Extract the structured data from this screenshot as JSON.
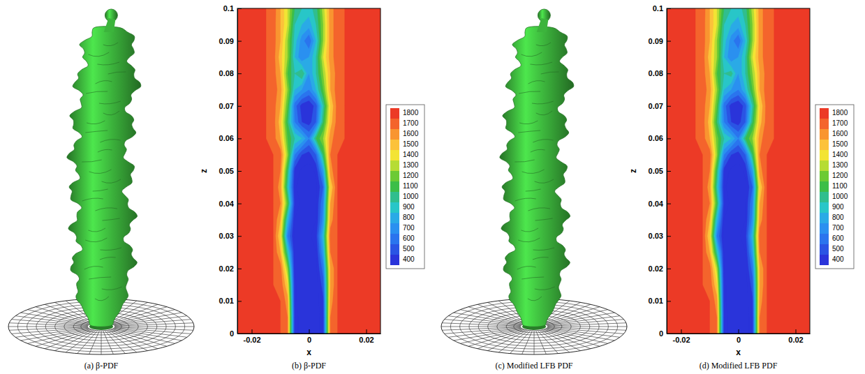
{
  "chart_data": [
    {
      "type": "isosurface",
      "title": "(a) β-PDF",
      "color": "#3cb43c"
    },
    {
      "type": "contour",
      "title": "(b) β-PDF",
      "xlabel": "x",
      "ylabel": "z",
      "xlim": [
        -0.025,
        0.025
      ],
      "xticks": [
        -0.02,
        0,
        0.02
      ],
      "ylim": [
        0,
        0.1
      ],
      "yticks": [
        0,
        0.01,
        0.02,
        0.03,
        0.04,
        0.05,
        0.06,
        0.07,
        0.08,
        0.09,
        0.1
      ],
      "x": [
        -0.025,
        -0.0225,
        -0.02,
        -0.0175,
        -0.015,
        -0.0125,
        -0.01,
        -0.0075,
        -0.005,
        -0.0025,
        0,
        0.0025,
        0.005,
        0.0075,
        0.01,
        0.0125,
        0.015,
        0.0175,
        0.02,
        0.0225,
        0.025
      ],
      "y": [
        0,
        0.005,
        0.01,
        0.015,
        0.02,
        0.025,
        0.03,
        0.035,
        0.04,
        0.045,
        0.05,
        0.055,
        0.06,
        0.065,
        0.07,
        0.075,
        0.08,
        0.085,
        0.09,
        0.095,
        0.1
      ],
      "cells": [
        [
          1800,
          1800,
          1800,
          1800,
          1800,
          1800,
          1800,
          1700,
          450,
          350,
          350,
          350,
          450,
          1700,
          1800,
          1800,
          1800,
          1800,
          1800,
          1800,
          1800
        ],
        [
          1800,
          1800,
          1800,
          1800,
          1800,
          1800,
          1800,
          1700,
          450,
          350,
          350,
          350,
          450,
          1700,
          1800,
          1800,
          1800,
          1800,
          1800,
          1800,
          1800
        ],
        [
          1800,
          1800,
          1800,
          1800,
          1800,
          1800,
          1800,
          1650,
          420,
          350,
          350,
          350,
          480,
          1650,
          1800,
          1800,
          1800,
          1800,
          1800,
          1800,
          1800
        ],
        [
          1800,
          1800,
          1800,
          1800,
          1800,
          1800,
          1780,
          1500,
          420,
          350,
          350,
          350,
          550,
          1600,
          1800,
          1800,
          1800,
          1800,
          1800,
          1800,
          1800
        ],
        [
          1800,
          1800,
          1800,
          1800,
          1800,
          1800,
          1750,
          1300,
          400,
          350,
          350,
          380,
          650,
          1600,
          1800,
          1800,
          1800,
          1800,
          1800,
          1800,
          1800
        ],
        [
          1800,
          1800,
          1800,
          1800,
          1800,
          1800,
          1600,
          1000,
          400,
          350,
          350,
          400,
          800,
          1700,
          1800,
          1800,
          1800,
          1800,
          1800,
          1800,
          1800
        ],
        [
          1800,
          1800,
          1800,
          1800,
          1800,
          1800,
          1500,
          700,
          380,
          350,
          380,
          450,
          900,
          1750,
          1800,
          1800,
          1800,
          1800,
          1800,
          1800,
          1800
        ],
        [
          1800,
          1800,
          1800,
          1800,
          1800,
          1800,
          1600,
          900,
          400,
          350,
          350,
          400,
          750,
          1650,
          1800,
          1800,
          1800,
          1800,
          1800,
          1800,
          1800
        ],
        [
          1800,
          1800,
          1800,
          1800,
          1800,
          1800,
          1700,
          1200,
          450,
          380,
          350,
          400,
          700,
          1600,
          1800,
          1800,
          1800,
          1800,
          1800,
          1800,
          1800
        ],
        [
          1800,
          1800,
          1800,
          1800,
          1800,
          1800,
          1650,
          1000,
          420,
          350,
          350,
          380,
          600,
          1500,
          1800,
          1800,
          1800,
          1800,
          1800,
          1800,
          1800
        ],
        [
          1800,
          1800,
          1800,
          1800,
          1800,
          1800,
          1700,
          1100,
          450,
          380,
          350,
          420,
          800,
          1650,
          1800,
          1800,
          1800,
          1800,
          1800,
          1800,
          1800
        ],
        [
          1800,
          1800,
          1800,
          1800,
          1800,
          1800,
          1750,
          1300,
          700,
          500,
          450,
          600,
          1100,
          1700,
          1800,
          1800,
          1800,
          1800,
          1800,
          1800,
          1800
        ],
        [
          1800,
          1800,
          1800,
          1800,
          1800,
          1750,
          1600,
          1200,
          1000,
          900,
          700,
          1100,
          1300,
          1650,
          1780,
          1800,
          1800,
          1800,
          1800,
          1800,
          1800
        ],
        [
          1800,
          1800,
          1800,
          1800,
          1800,
          1750,
          1550,
          1100,
          700,
          500,
          450,
          600,
          1100,
          1550,
          1750,
          1800,
          1800,
          1800,
          1800,
          1800,
          1800
        ],
        [
          1800,
          1800,
          1800,
          1800,
          1800,
          1750,
          1600,
          1200,
          650,
          450,
          400,
          550,
          1000,
          1500,
          1750,
          1800,
          1800,
          1800,
          1800,
          1800,
          1800
        ],
        [
          1800,
          1800,
          1800,
          1800,
          1800,
          1760,
          1650,
          1300,
          900,
          800,
          700,
          900,
          1200,
          1600,
          1760,
          1800,
          1800,
          1800,
          1800,
          1800,
          1800
        ],
        [
          1800,
          1800,
          1800,
          1800,
          1800,
          1750,
          1600,
          1200,
          1000,
          1100,
          800,
          1000,
          1300,
          1600,
          1750,
          1800,
          1800,
          1800,
          1800,
          1800,
          1800
        ],
        [
          1800,
          1800,
          1800,
          1800,
          1800,
          1750,
          1550,
          1300,
          900,
          700,
          800,
          1000,
          1400,
          1650,
          1760,
          1800,
          1800,
          1800,
          1800,
          1800,
          1800
        ],
        [
          1800,
          1800,
          1800,
          1800,
          1800,
          1750,
          1600,
          1300,
          950,
          750,
          600,
          900,
          1300,
          1650,
          1760,
          1800,
          1800,
          1800,
          1800,
          1800,
          1800
        ],
        [
          1800,
          1800,
          1800,
          1800,
          1800,
          1750,
          1600,
          1400,
          1000,
          900,
          850,
          1000,
          1300,
          1650,
          1760,
          1800,
          1800,
          1800,
          1800,
          1800,
          1800
        ],
        [
          1800,
          1800,
          1800,
          1800,
          1800,
          1760,
          1600,
          1400,
          1100,
          1000,
          950,
          1050,
          1350,
          1650,
          1760,
          1800,
          1800,
          1800,
          1800,
          1800,
          1800
        ]
      ],
      "colorbar": {
        "levels": [
          1800,
          1700,
          1600,
          1500,
          1400,
          1300,
          1200,
          1100,
          1000,
          900,
          800,
          700,
          600,
          500,
          400
        ],
        "colors": [
          "#ec3a26",
          "#f4642c",
          "#f99530",
          "#fcc23a",
          "#f3e434",
          "#b6dc34",
          "#6cca34",
          "#3cbe48",
          "#30be8e",
          "#28c6c8",
          "#2aaae6",
          "#2a90f0",
          "#2a74ee",
          "#2a54e4",
          "#2a34da"
        ]
      }
    },
    {
      "type": "isosurface",
      "title": "(c) Modified LFB PDF",
      "color": "#3cb43c"
    },
    {
      "type": "contour",
      "title": "(d) Modified LFB PDF",
      "xlabel": "x",
      "ylabel": "z",
      "xlim": [
        -0.025,
        0.025
      ],
      "xticks": [
        -0.02,
        0,
        0.02
      ],
      "ylim": [
        0,
        0.1
      ],
      "yticks": [
        0,
        0.01,
        0.02,
        0.03,
        0.04,
        0.05,
        0.06,
        0.07,
        0.08,
        0.09,
        0.1
      ],
      "x": [
        -0.025,
        -0.0225,
        -0.02,
        -0.0175,
        -0.015,
        -0.0125,
        -0.01,
        -0.0075,
        -0.005,
        -0.0025,
        0,
        0.0025,
        0.005,
        0.0075,
        0.01,
        0.0125,
        0.015,
        0.0175,
        0.02,
        0.0225,
        0.025
      ],
      "y": [
        0,
        0.005,
        0.01,
        0.015,
        0.02,
        0.025,
        0.03,
        0.035,
        0.04,
        0.045,
        0.05,
        0.055,
        0.06,
        0.065,
        0.07,
        0.075,
        0.08,
        0.085,
        0.09,
        0.095,
        0.1
      ],
      "cells": [
        [
          1800,
          1800,
          1800,
          1800,
          1800,
          1800,
          1800,
          1700,
          450,
          350,
          350,
          350,
          450,
          1700,
          1800,
          1800,
          1800,
          1800,
          1800,
          1800,
          1800
        ],
        [
          1800,
          1800,
          1800,
          1800,
          1800,
          1800,
          1800,
          1700,
          450,
          350,
          350,
          350,
          450,
          1700,
          1800,
          1800,
          1800,
          1800,
          1800,
          1800,
          1800
        ],
        [
          1800,
          1800,
          1800,
          1800,
          1800,
          1800,
          1800,
          1650,
          420,
          350,
          350,
          350,
          480,
          1650,
          1800,
          1800,
          1800,
          1800,
          1800,
          1800,
          1800
        ],
        [
          1800,
          1800,
          1800,
          1800,
          1800,
          1800,
          1780,
          1500,
          420,
          350,
          350,
          350,
          550,
          1600,
          1800,
          1800,
          1800,
          1800,
          1800,
          1800,
          1800
        ],
        [
          1800,
          1800,
          1800,
          1800,
          1800,
          1800,
          1750,
          1350,
          400,
          350,
          350,
          380,
          650,
          1600,
          1800,
          1800,
          1800,
          1800,
          1800,
          1800,
          1800
        ],
        [
          1800,
          1800,
          1800,
          1800,
          1800,
          1800,
          1600,
          1000,
          400,
          350,
          350,
          400,
          800,
          1700,
          1800,
          1800,
          1800,
          1800,
          1800,
          1800,
          1800
        ],
        [
          1800,
          1800,
          1800,
          1800,
          1800,
          1800,
          1500,
          700,
          380,
          350,
          380,
          450,
          900,
          1750,
          1800,
          1800,
          1800,
          1800,
          1800,
          1800,
          1800
        ],
        [
          1800,
          1800,
          1800,
          1800,
          1800,
          1800,
          1600,
          900,
          400,
          350,
          350,
          400,
          750,
          1650,
          1800,
          1800,
          1800,
          1800,
          1800,
          1800,
          1800
        ],
        [
          1800,
          1800,
          1800,
          1800,
          1800,
          1800,
          1700,
          1150,
          450,
          380,
          350,
          400,
          700,
          1600,
          1800,
          1800,
          1800,
          1800,
          1800,
          1800,
          1800
        ],
        [
          1800,
          1800,
          1800,
          1800,
          1800,
          1800,
          1650,
          1000,
          420,
          350,
          350,
          380,
          600,
          1500,
          1800,
          1800,
          1800,
          1800,
          1800,
          1800,
          1800
        ],
        [
          1800,
          1800,
          1800,
          1800,
          1800,
          1800,
          1700,
          1100,
          450,
          380,
          350,
          420,
          800,
          1650,
          1800,
          1800,
          1800,
          1800,
          1800,
          1800,
          1800
        ],
        [
          1800,
          1800,
          1800,
          1800,
          1800,
          1800,
          1750,
          1300,
          700,
          500,
          450,
          600,
          1100,
          1700,
          1800,
          1800,
          1800,
          1800,
          1800,
          1800,
          1800
        ],
        [
          1800,
          1800,
          1800,
          1800,
          1800,
          1750,
          1600,
          1250,
          1000,
          900,
          700,
          1100,
          1300,
          1650,
          1780,
          1800,
          1800,
          1800,
          1800,
          1800,
          1800
        ],
        [
          1800,
          1800,
          1800,
          1800,
          1800,
          1750,
          1550,
          1100,
          700,
          500,
          450,
          600,
          1100,
          1550,
          1750,
          1800,
          1800,
          1800,
          1800,
          1800,
          1800
        ],
        [
          1800,
          1800,
          1800,
          1800,
          1800,
          1750,
          1600,
          1200,
          650,
          450,
          400,
          550,
          1000,
          1500,
          1750,
          1800,
          1800,
          1800,
          1800,
          1800,
          1800
        ],
        [
          1800,
          1800,
          1800,
          1800,
          1800,
          1760,
          1650,
          1300,
          900,
          800,
          700,
          900,
          1200,
          1600,
          1760,
          1800,
          1800,
          1800,
          1800,
          1800,
          1800
        ],
        [
          1800,
          1800,
          1800,
          1800,
          1800,
          1750,
          1600,
          1200,
          1000,
          1050,
          800,
          1000,
          1300,
          1600,
          1750,
          1800,
          1800,
          1800,
          1800,
          1800,
          1800
        ],
        [
          1800,
          1800,
          1800,
          1800,
          1800,
          1750,
          1550,
          1300,
          900,
          700,
          800,
          1000,
          1400,
          1650,
          1760,
          1800,
          1800,
          1800,
          1800,
          1800,
          1800
        ],
        [
          1800,
          1800,
          1800,
          1800,
          1800,
          1750,
          1600,
          1300,
          950,
          750,
          600,
          900,
          1300,
          1650,
          1760,
          1800,
          1800,
          1800,
          1800,
          1800,
          1800
        ],
        [
          1800,
          1800,
          1800,
          1800,
          1800,
          1750,
          1600,
          1400,
          1000,
          900,
          850,
          1000,
          1300,
          1650,
          1760,
          1800,
          1800,
          1800,
          1800,
          1800,
          1800
        ],
        [
          1800,
          1800,
          1800,
          1800,
          1800,
          1760,
          1600,
          1400,
          1100,
          1000,
          950,
          1050,
          1350,
          1650,
          1760,
          1800,
          1800,
          1800,
          1800,
          1800,
          1800
        ]
      ],
      "colorbar": {
        "levels": [
          1800,
          1700,
          1600,
          1500,
          1400,
          1300,
          1200,
          1100,
          1000,
          900,
          800,
          700,
          600,
          500,
          400
        ],
        "colors": [
          "#ec3a26",
          "#f4642c",
          "#f99530",
          "#fcc23a",
          "#f3e434",
          "#b6dc34",
          "#6cca34",
          "#3cbe48",
          "#30be8e",
          "#28c6c8",
          "#2aaae6",
          "#2a90f0",
          "#2a74ee",
          "#2a54e4",
          "#2a34da"
        ]
      }
    }
  ]
}
